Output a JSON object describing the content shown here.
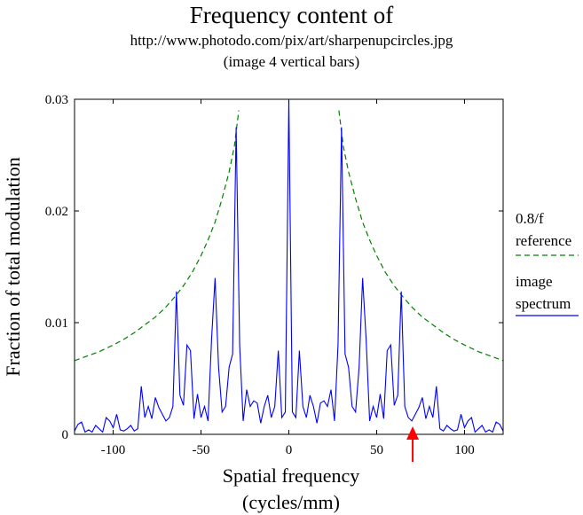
{
  "title": {
    "line1": "Frequency content of",
    "line2": "http://www.photodo.com/pix/art/sharpenupcircles.jpg",
    "line3": "(image 4 vertical bars)"
  },
  "colors": {
    "spectrum": "#0000ff",
    "reference": "#007f00",
    "arrow": "#ff0000"
  },
  "chart_data": {
    "type": "line",
    "xlabel_line1": "Spatial frequency",
    "xlabel_line2": "(cycles/mm)",
    "ylabel": "Fraction of total modulation",
    "xlim": [
      -122,
      122
    ],
    "ylim": [
      0,
      0.03
    ],
    "xticks": [
      -100,
      -50,
      0,
      50,
      100
    ],
    "xtick_labels": [
      "-100",
      "-50",
      "0",
      "50",
      "100"
    ],
    "yticks": [
      0,
      0.01,
      0.02,
      0.03
    ],
    "ytick_labels": [
      "0",
      "0.01",
      "0.02",
      "0.03"
    ],
    "grid": false,
    "legend": {
      "placement": "right",
      "ref_label_line1": "0.8/f",
      "ref_label_line2": "reference",
      "spec_label_line1": "image",
      "spec_label_line2": "spectrum"
    },
    "arrow_annotation": {
      "x": 70.5,
      "color": "red"
    },
    "series": [
      {
        "name": "0.8/f reference",
        "style": "dashed",
        "color": "#007f00",
        "formula": "0.8/|f|",
        "x": [
          -122,
          -115,
          -108,
          -100,
          -94,
          -88,
          -82,
          -76,
          -70,
          -65,
          -60,
          -55,
          -50,
          -46,
          -42,
          -38,
          -34,
          -31,
          -28.5,
          28.5,
          31,
          34,
          38,
          42,
          46,
          50,
          55,
          60,
          65,
          70,
          76,
          82,
          88,
          94,
          100,
          108,
          115,
          122
        ],
        "y": [
          0.0066,
          0.007,
          0.0074,
          0.008,
          0.0085,
          0.0091,
          0.0098,
          0.0105,
          0.0114,
          0.0123,
          0.0133,
          0.0145,
          0.016,
          0.0174,
          0.019,
          0.0211,
          0.0235,
          0.0258,
          0.029,
          0.029,
          0.0258,
          0.0235,
          0.0211,
          0.019,
          0.0174,
          0.016,
          0.0145,
          0.0133,
          0.0123,
          0.0114,
          0.0105,
          0.0098,
          0.0091,
          0.0085,
          0.008,
          0.0074,
          0.007,
          0.0066
        ]
      },
      {
        "name": "image spectrum",
        "style": "solid",
        "color": "#0000ff",
        "x": [
          -122,
          -120,
          -118,
          -116,
          -114,
          -112,
          -110,
          -108,
          -106,
          -104,
          -102,
          -100,
          -98,
          -96,
          -94,
          -92,
          -90,
          -88,
          -86,
          -84,
          -82,
          -80,
          -78,
          -76,
          -74,
          -72,
          -70,
          -68,
          -66,
          -64,
          -62,
          -60,
          -58,
          -56,
          -54,
          -52,
          -50,
          -48,
          -46,
          -44,
          -42,
          -40,
          -38,
          -36,
          -34,
          -32,
          -30,
          -28,
          -26,
          -24,
          -22,
          -20,
          -18,
          -16,
          -14,
          -12,
          -10,
          -8,
          -6,
          -4,
          -2,
          0,
          2,
          4,
          6,
          8,
          10,
          12,
          14,
          16,
          18,
          20,
          22,
          24,
          26,
          28,
          30,
          32,
          34,
          36,
          38,
          40,
          42,
          44,
          46,
          48,
          50,
          52,
          54,
          56,
          58,
          60,
          62,
          64,
          66,
          68,
          70,
          72,
          74,
          76,
          78,
          80,
          82,
          84,
          86,
          88,
          90,
          92,
          94,
          96,
          98,
          100,
          102,
          104,
          106,
          108,
          110,
          112,
          114,
          116,
          118,
          120,
          122
        ],
        "y": [
          0.0003,
          0.0009,
          0.0011,
          0.0002,
          0.0004,
          0.0002,
          0.0008,
          0.0005,
          0.0002,
          0.0015,
          0.0012,
          0.0006,
          0.0018,
          0.0004,
          0.0003,
          0.0005,
          0.0008,
          0.0003,
          0.0005,
          0.0043,
          0.0015,
          0.0025,
          0.0014,
          0.0033,
          0.0024,
          0.0018,
          0.0012,
          0.0015,
          0.0025,
          0.0128,
          0.0035,
          0.0026,
          0.008,
          0.0075,
          0.0014,
          0.0036,
          0.0015,
          0.0025,
          0.0012,
          0.0085,
          0.014,
          0.006,
          0.002,
          0.0025,
          0.006,
          0.0072,
          0.0275,
          0.008,
          0.0012,
          0.004,
          0.0025,
          0.003,
          0.0028,
          0.001,
          0.0025,
          0.0035,
          0.0015,
          0.0025,
          0.0075,
          0.0015,
          0.002,
          0.03,
          0.002,
          0.0015,
          0.0075,
          0.0025,
          0.0015,
          0.0035,
          0.0025,
          0.001,
          0.0028,
          0.003,
          0.0025,
          0.004,
          0.0012,
          0.008,
          0.0275,
          0.0072,
          0.006,
          0.0025,
          0.002,
          0.006,
          0.014,
          0.0085,
          0.0012,
          0.0025,
          0.0015,
          0.0036,
          0.0014,
          0.0075,
          0.008,
          0.0026,
          0.0035,
          0.0128,
          0.0025,
          0.0015,
          0.0012,
          0.0018,
          0.0024,
          0.0033,
          0.0014,
          0.0025,
          0.0015,
          0.0043,
          0.0005,
          0.0003,
          0.0008,
          0.0005,
          0.0003,
          0.0004,
          0.0018,
          0.0006,
          0.0012,
          0.0015,
          0.0002,
          0.0005,
          0.0008,
          0.0002,
          0.0004,
          0.0002,
          0.0011,
          0.0009,
          0.0003
        ]
      }
    ]
  }
}
